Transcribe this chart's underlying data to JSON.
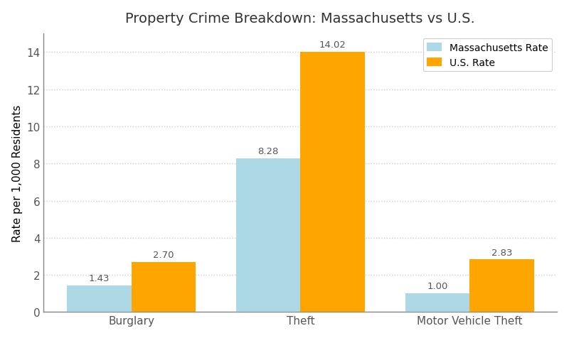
{
  "title": "Property Crime Breakdown: Massachusetts vs U.S.",
  "categories": [
    "Burglary",
    "Theft",
    "Motor Vehicle Theft"
  ],
  "massachusetts_values": [
    1.43,
    8.28,
    1.0
  ],
  "us_values": [
    2.7,
    14.02,
    2.83
  ],
  "ma_color": "#add8e6",
  "us_color": "#ffa500",
  "ylabel": "Rate per 1,000 Residents",
  "legend_labels": [
    "Massachusetts Rate",
    "U.S. Rate"
  ],
  "ylim": [
    0,
    15
  ],
  "bar_width": 0.38,
  "title_fontsize": 14,
  "label_fontsize": 11,
  "tick_fontsize": 11,
  "annotation_fontsize": 9.5,
  "background_color": "#ffffff",
  "plot_bg_color": "#ffffff",
  "grid_color": "#cccccc",
  "spine_color": "#888888",
  "yticks": [
    0,
    2,
    4,
    6,
    8,
    10,
    12,
    14
  ]
}
